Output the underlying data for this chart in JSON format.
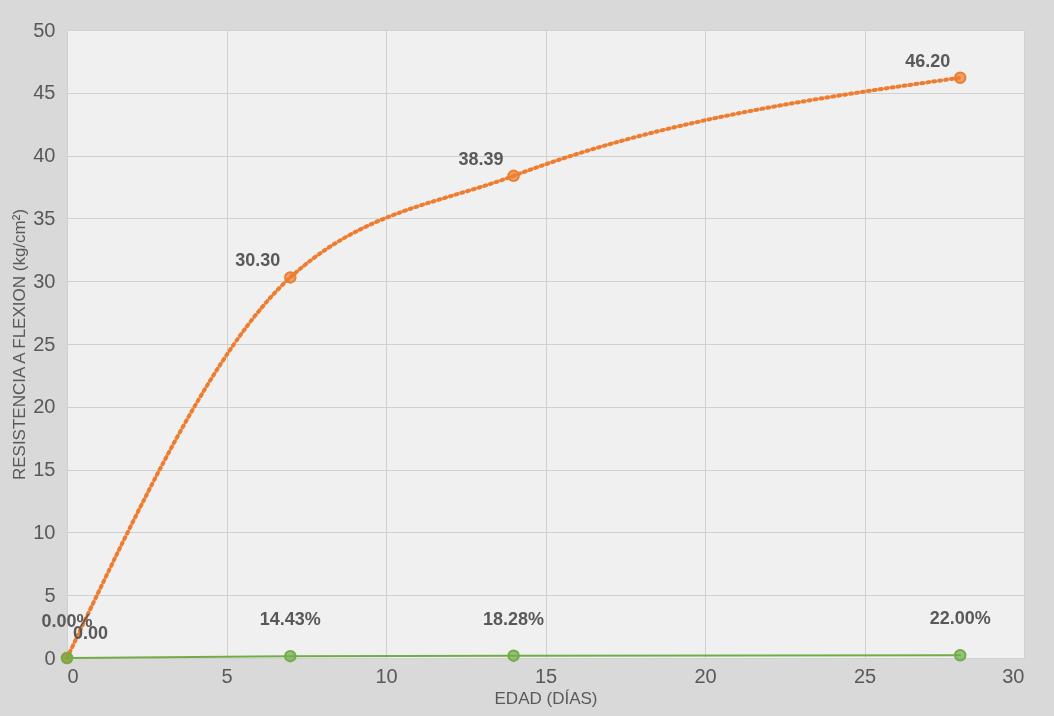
{
  "chart_data": {
    "type": "line",
    "xlabel": "EDAD (DÍAS)",
    "ylabel": "RESISTENCIA A FLEXION (kg/cm²)",
    "x": [
      0,
      7,
      14,
      28
    ],
    "series": [
      {
        "color": "#ed7d31",
        "values": [
          0,
          30.3,
          38.39,
          46.2
        ],
        "value_labels": [
          "0.00",
          "30.30",
          "38.39",
          "46.20"
        ],
        "line_style": "dotted"
      },
      {
        "color": "#70ad47",
        "values": [
          0,
          0.1443,
          0.1828,
          0.22
        ],
        "value_labels": [
          "0.00%",
          "14.43%",
          "18.28%",
          "22.00%"
        ],
        "line_style": "solid"
      }
    ],
    "xlim": [
      0,
      30
    ],
    "xticks": [
      0,
      5,
      10,
      15,
      20,
      25,
      30
    ],
    "ylim": [
      0,
      50
    ],
    "yticks": [
      0,
      5,
      10,
      15,
      20,
      25,
      30,
      35,
      40,
      45,
      50
    ],
    "grid": true,
    "marker": "circle"
  }
}
